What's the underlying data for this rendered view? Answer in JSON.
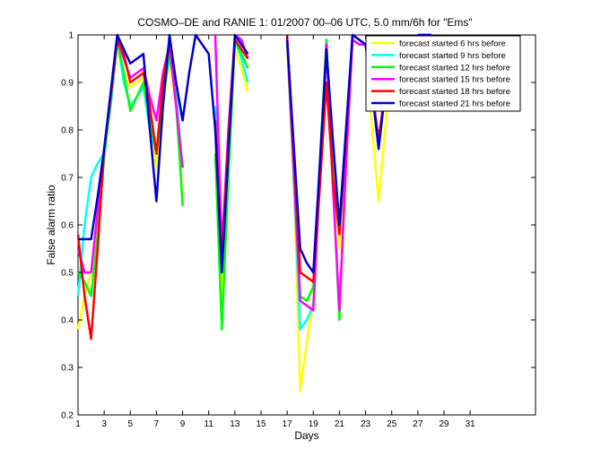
{
  "chart_data": {
    "type": "line",
    "title": "COSMO–DE and RANIE 1: 01/2007 00–06 UTC, 5.0 mm/6h for \"Ems\"",
    "xlabel": "Days",
    "ylabel": "False alarm ratio",
    "xlim": [
      1,
      36
    ],
    "ylim": [
      0.2,
      1.0
    ],
    "xticks": [
      1,
      3,
      5,
      7,
      9,
      11,
      13,
      15,
      17,
      19,
      21,
      23,
      25,
      27,
      29,
      31
    ],
    "yticks": [
      0.2,
      0.3,
      0.4,
      0.5,
      0.6,
      0.7,
      0.8,
      0.9,
      1.0
    ],
    "ytick_labels": [
      "0.2",
      "0.3",
      "0.4",
      "0.5",
      "0.6",
      "0.7",
      "0.8",
      "0.9",
      "1"
    ],
    "grid": false,
    "legend_position": "top-right",
    "x": [
      1,
      1.5,
      2,
      2.5,
      3,
      3.5,
      4,
      4.5,
      5,
      5.5,
      6,
      6.5,
      7,
      7.5,
      8,
      8.5,
      9,
      9.5,
      10,
      10.5,
      11,
      11.5,
      12,
      12.5,
      13,
      13.5,
      14,
      14.5,
      15,
      15.5,
      16,
      16.5,
      17,
      17.5,
      18,
      18.5,
      19,
      19.5,
      20,
      20.5,
      21,
      21.5,
      22,
      22.5,
      23,
      23.5,
      24,
      24.5,
      25,
      25.5,
      26,
      26.5,
      27,
      27.5,
      28,
      28.5,
      29
    ],
    "series": [
      {
        "name": "forecast started 6 hrs before",
        "color": "#ffff00",
        "values": [
          0.38,
          0.45,
          0.5,
          0.62,
          0.75,
          0.85,
          0.97,
          0.92,
          0.89,
          0.9,
          0.91,
          0.8,
          0.72,
          0.85,
          0.95,
          0.85,
          0.65,
          null,
          null,
          null,
          null,
          0.8,
          0.45,
          0.7,
          0.97,
          0.93,
          0.88,
          null,
          null,
          null,
          null,
          null,
          0.98,
          0.7,
          0.25,
          0.35,
          0.45,
          0.7,
          0.95,
          0.75,
          0.55,
          0.75,
          0.99,
          0.98,
          0.98,
          0.8,
          0.65,
          0.8,
          0.98,
          null,
          null,
          null,
          1.0,
          1.0,
          1.0,
          0.97,
          0.95
        ]
      },
      {
        "name": "forecast started 9 hrs before",
        "color": "#00ffff",
        "values": [
          0.45,
          0.6,
          0.7,
          0.73,
          0.75,
          0.85,
          0.99,
          0.9,
          0.85,
          0.87,
          0.89,
          0.8,
          0.75,
          0.88,
          0.95,
          0.88,
          0.72,
          null,
          null,
          null,
          null,
          0.85,
          0.5,
          0.75,
          0.99,
          0.95,
          0.9,
          null,
          null,
          null,
          null,
          null,
          0.99,
          0.7,
          0.38,
          0.4,
          0.43,
          0.7,
          0.96,
          0.77,
          0.6,
          0.8,
          0.99,
          0.98,
          0.98,
          0.88,
          0.85,
          0.9,
          0.99,
          null,
          null,
          null,
          1.0,
          1.0,
          1.0,
          0.96,
          0.94
        ]
      },
      {
        "name": "forecast started 12 hrs before",
        "color": "#00ff00",
        "values": [
          0.5,
          0.48,
          0.45,
          0.58,
          0.74,
          0.86,
          0.99,
          0.92,
          0.84,
          0.87,
          0.9,
          0.82,
          0.75,
          0.86,
          0.97,
          0.86,
          0.64,
          null,
          null,
          null,
          null,
          0.75,
          0.38,
          0.7,
          0.99,
          0.96,
          0.93,
          null,
          null,
          null,
          null,
          null,
          0.99,
          0.72,
          0.45,
          0.44,
          0.47,
          0.73,
          0.99,
          0.7,
          0.4,
          0.75,
          0.99,
          0.98,
          0.98,
          0.9,
          0.88,
          0.92,
          0.99,
          null,
          null,
          null,
          1.0,
          1.0,
          1.0,
          0.98,
          0.96
        ]
      },
      {
        "name": "forecast started 15 hrs before",
        "color": "#ff00ff",
        "values": [
          0.55,
          0.5,
          0.5,
          0.63,
          0.76,
          0.87,
          0.99,
          0.95,
          0.91,
          0.92,
          0.93,
          0.87,
          0.82,
          0.92,
          0.98,
          0.85,
          0.72,
          null,
          null,
          null,
          null,
          1.0,
          0.55,
          0.8,
          1.0,
          0.99,
          0.95,
          null,
          null,
          null,
          null,
          null,
          0.99,
          0.72,
          0.44,
          0.43,
          0.42,
          0.7,
          0.98,
          0.68,
          0.42,
          0.72,
          0.99,
          0.98,
          0.98,
          0.88,
          0.78,
          0.88,
          0.99,
          null,
          null,
          null,
          1.0,
          1.0,
          1.0,
          0.98,
          0.96
        ]
      },
      {
        "name": "forecast started 18 hrs before",
        "color": "#ff0000",
        "values": [
          0.58,
          0.45,
          0.36,
          0.55,
          0.76,
          0.87,
          0.99,
          0.96,
          0.9,
          0.91,
          0.92,
          0.85,
          0.75,
          0.9,
          0.99,
          0.9,
          0.82,
          null,
          null,
          null,
          null,
          0.82,
          0.52,
          0.78,
          0.99,
          0.97,
          0.95,
          null,
          null,
          null,
          null,
          null,
          1.0,
          0.75,
          0.5,
          0.49,
          0.48,
          0.68,
          0.9,
          0.7,
          0.58,
          0.78,
          1.0,
          0.99,
          0.98,
          0.88,
          0.78,
          0.88,
          0.99,
          null,
          null,
          null,
          1.0,
          1.0,
          1.0,
          0.98,
          0.96
        ]
      },
      {
        "name": "forecast started 21 hrs before",
        "color": "#0000cc",
        "values": [
          0.57,
          0.57,
          0.57,
          0.66,
          0.76,
          0.88,
          1.0,
          0.97,
          0.94,
          0.95,
          0.96,
          0.8,
          0.65,
          0.85,
          1.0,
          0.9,
          0.82,
          0.92,
          1.0,
          0.98,
          0.96,
          0.8,
          0.5,
          0.75,
          1.0,
          0.98,
          0.96,
          null,
          null,
          null,
          null,
          null,
          0.99,
          0.77,
          0.55,
          0.52,
          0.5,
          0.73,
          0.97,
          0.78,
          0.6,
          0.8,
          1.0,
          0.99,
          0.98,
          0.88,
          0.76,
          0.88,
          1.0,
          null,
          null,
          null,
          1.0,
          1.0,
          1.0,
          0.98,
          0.96
        ]
      }
    ]
  }
}
